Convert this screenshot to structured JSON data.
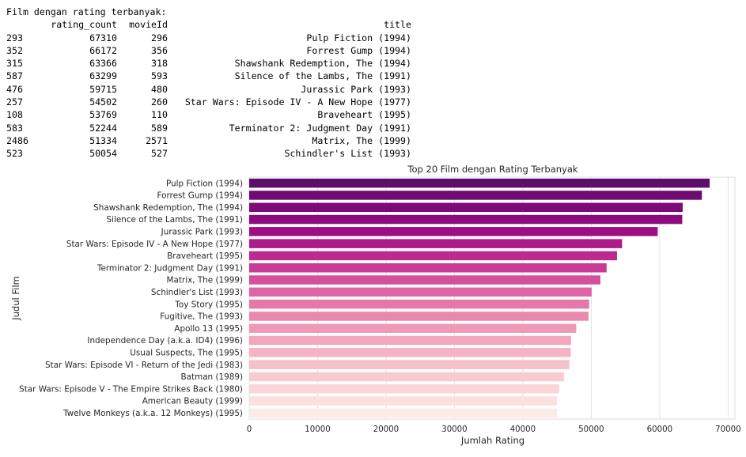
{
  "console": {
    "heading": "Film dengan rating terbanyak:",
    "columns": [
      "rating_count",
      "movieId",
      "title"
    ],
    "rows": [
      {
        "index": "293",
        "rating_count": "67310",
        "movieId": "296",
        "title": "Pulp Fiction (1994)"
      },
      {
        "index": "352",
        "rating_count": "66172",
        "movieId": "356",
        "title": "Forrest Gump (1994)"
      },
      {
        "index": "315",
        "rating_count": "63366",
        "movieId": "318",
        "title": "Shawshank Redemption, The (1994)"
      },
      {
        "index": "587",
        "rating_count": "63299",
        "movieId": "593",
        "title": "Silence of the Lambs, The (1991)"
      },
      {
        "index": "476",
        "rating_count": "59715",
        "movieId": "480",
        "title": "Jurassic Park (1993)"
      },
      {
        "index": "257",
        "rating_count": "54502",
        "movieId": "260",
        "title": "Star Wars: Episode IV - A New Hope (1977)"
      },
      {
        "index": "108",
        "rating_count": "53769",
        "movieId": "110",
        "title": "Braveheart (1995)"
      },
      {
        "index": "583",
        "rating_count": "52244",
        "movieId": "589",
        "title": "Terminator 2: Judgment Day (1991)"
      },
      {
        "index": "2486",
        "rating_count": "51334",
        "movieId": "2571",
        "title": "Matrix, The (1999)"
      },
      {
        "index": "523",
        "rating_count": "50054",
        "movieId": "527",
        "title": "Schindler's List (1993)"
      }
    ]
  },
  "chart_data": {
    "type": "bar",
    "orientation": "horizontal",
    "title": "Top 20 Film dengan Rating Terbanyak",
    "xlabel": "Jumlah Rating",
    "ylabel": "Judul Film",
    "xlim": [
      0,
      71000
    ],
    "xticks": [
      0,
      10000,
      20000,
      30000,
      40000,
      50000,
      60000,
      70000
    ],
    "grid": "vertical",
    "palette": "RdPu (dark purple to pale pink)",
    "categories": [
      "Pulp Fiction (1994)",
      "Forrest Gump (1994)",
      "Shawshank Redemption, The (1994)",
      "Silence of the Lambs, The (1991)",
      "Jurassic Park (1993)",
      "Star Wars: Episode IV - A New Hope (1977)",
      "Braveheart (1995)",
      "Terminator 2: Judgment Day (1991)",
      "Matrix, The (1999)",
      "Schindler's List (1993)",
      "Toy Story (1995)",
      "Fugitive, The (1993)",
      "Apollo 13 (1995)",
      "Independence Day (a.k.a. ID4) (1996)",
      "Usual Suspects, The (1995)",
      "Star Wars: Episode VI - Return of the Jedi (1983)",
      "Batman (1989)",
      "Star Wars: Episode V - The Empire Strikes Back (1980)",
      "American Beauty (1999)",
      "Twelve Monkeys (a.k.a. 12 Monkeys) (1995)"
    ],
    "values": [
      67310,
      66172,
      63366,
      63299,
      59715,
      54502,
      53769,
      52244,
      51334,
      50054,
      49700,
      49600,
      47800,
      47050,
      47000,
      46800,
      46000,
      45300,
      45000,
      45000
    ],
    "colors": [
      "#5e0d6a",
      "#6f0c74",
      "#7e0a79",
      "#8e0b7e",
      "#9e0e82",
      "#ae1a89",
      "#bd2a8f",
      "#c93a95",
      "#d5509c",
      "#df64a3",
      "#e677a9",
      "#eb88b0",
      "#ef99b6",
      "#f2a7bd",
      "#f4b4c3",
      "#f6c0ca",
      "#f8cbd1",
      "#fad6d8",
      "#fbe0df",
      "#fcebe7"
    ]
  }
}
